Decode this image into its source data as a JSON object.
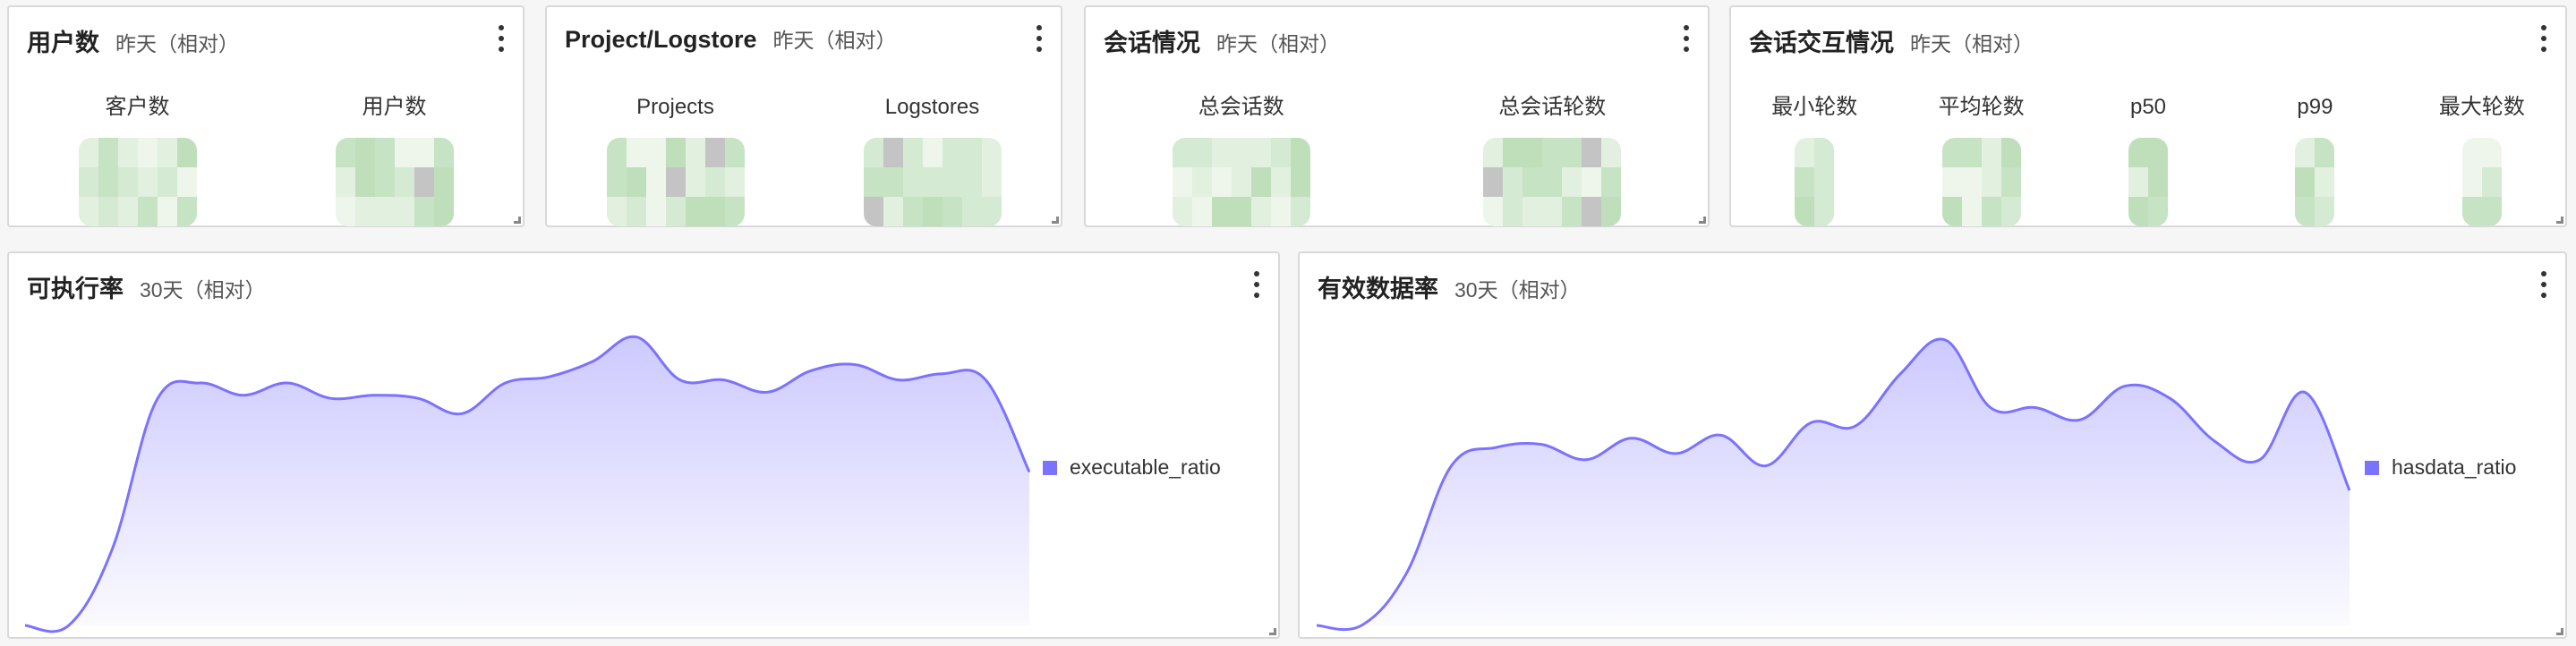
{
  "cards": [
    {
      "title": "用户数",
      "range": "昨天（相对）",
      "stats": [
        {
          "label": "客户数"
        },
        {
          "label": "用户数"
        }
      ]
    },
    {
      "title": "Project/Logstore",
      "range": "昨天（相对）",
      "stats": [
        {
          "label": "Projects"
        },
        {
          "label": "Logstores"
        }
      ]
    },
    {
      "title": "会话情况",
      "range": "昨天（相对）",
      "stats": [
        {
          "label": "总会话数"
        },
        {
          "label": "总会话轮数"
        }
      ]
    },
    {
      "title": "会话交互情况",
      "range": "昨天（相对）",
      "stats": [
        {
          "label": "最小轮数"
        },
        {
          "label": "平均轮数"
        },
        {
          "label": "p50"
        },
        {
          "label": "p99"
        },
        {
          "label": "最大轮数"
        }
      ]
    }
  ],
  "colors": {
    "series": "#7b72ff",
    "mosaic": [
      "#d5ead2",
      "#c6e3c3",
      "#e2f0df",
      "#bfdfbb",
      "#eef6ec"
    ]
  },
  "icons": {
    "menu": "more-vertical-icon",
    "resize": "resize-handle-icon"
  },
  "chart_data": [
    {
      "type": "area",
      "title": "可执行率",
      "range": "30天（相对）",
      "legend": "right",
      "grid": false,
      "axes_visible": false,
      "series": [
        {
          "name": "executable_ratio",
          "values": [
            0,
            0,
            0.25,
            0.73,
            0.79,
            0.75,
            0.79,
            0.74,
            0.75,
            0.74,
            0.69,
            0.79,
            0.81,
            0.86,
            0.94,
            0.8,
            0.8,
            0.76,
            0.83,
            0.85,
            0.8,
            0.82,
            0.8,
            0.5
          ]
        }
      ]
    },
    {
      "type": "area",
      "title": "有效数据率",
      "range": "30天（相对）",
      "legend": "right",
      "grid": false,
      "axes_visible": false,
      "series": [
        {
          "name": "hasdata_ratio",
          "values": [
            0,
            0,
            0.17,
            0.52,
            0.58,
            0.59,
            0.54,
            0.61,
            0.56,
            0.62,
            0.52,
            0.66,
            0.65,
            0.82,
            0.93,
            0.71,
            0.71,
            0.67,
            0.78,
            0.74,
            0.6,
            0.54,
            0.76,
            0.44
          ]
        }
      ]
    }
  ]
}
